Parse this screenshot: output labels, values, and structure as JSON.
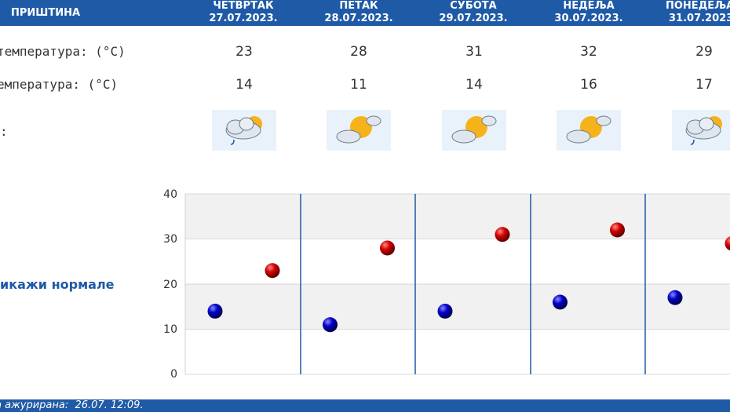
{
  "header": {
    "city": "ПРИШТИНА",
    "days": [
      {
        "name": "ЧЕТВРТАК",
        "date": "27.07.2023."
      },
      {
        "name": "ПЕТАК",
        "date": "28.07.2023."
      },
      {
        "name": "СУБОТА",
        "date": "29.07.2023."
      },
      {
        "name": "НЕДЕЉА",
        "date": "30.07.2023."
      },
      {
        "name": "ПОНЕДЕЉА",
        "date": "31.07.2023"
      }
    ]
  },
  "rows": {
    "max_label": "температура: (°C)",
    "min_label": "емпература: (°C)",
    "icon_label": ":",
    "max_values": [
      "23",
      "28",
      "31",
      "32",
      "29"
    ],
    "min_values": [
      "14",
      "11",
      "14",
      "16",
      "17"
    ],
    "icons": [
      "cloud-sun-rain-icon",
      "sun-cloud-icon",
      "sun-cloud-icon",
      "sun-cloud-icon",
      "cloud-sun-rain-icon"
    ]
  },
  "normals_link": "икажи нормале",
  "footer": {
    "text": "а ажурирана:  26.07. 12:09."
  },
  "colors": {
    "header_blue": "#1f5aa6",
    "max_dot": "#cc0000",
    "min_dot": "#0000b3"
  },
  "chart_data": {
    "type": "scatter",
    "categories": [
      "27.07.2023.",
      "28.07.2023.",
      "29.07.2023.",
      "30.07.2023.",
      "31.07.2023"
    ],
    "series": [
      {
        "values": [
          14,
          11,
          14,
          16,
          17
        ],
        "color": "#0000b3"
      },
      {
        "values": [
          23,
          28,
          31,
          32,
          29
        ],
        "color": "#cc0000"
      }
    ],
    "ylim": [
      0,
      40
    ],
    "yticks": [
      "0",
      "10",
      "20",
      "30",
      "40"
    ],
    "grid": true
  }
}
